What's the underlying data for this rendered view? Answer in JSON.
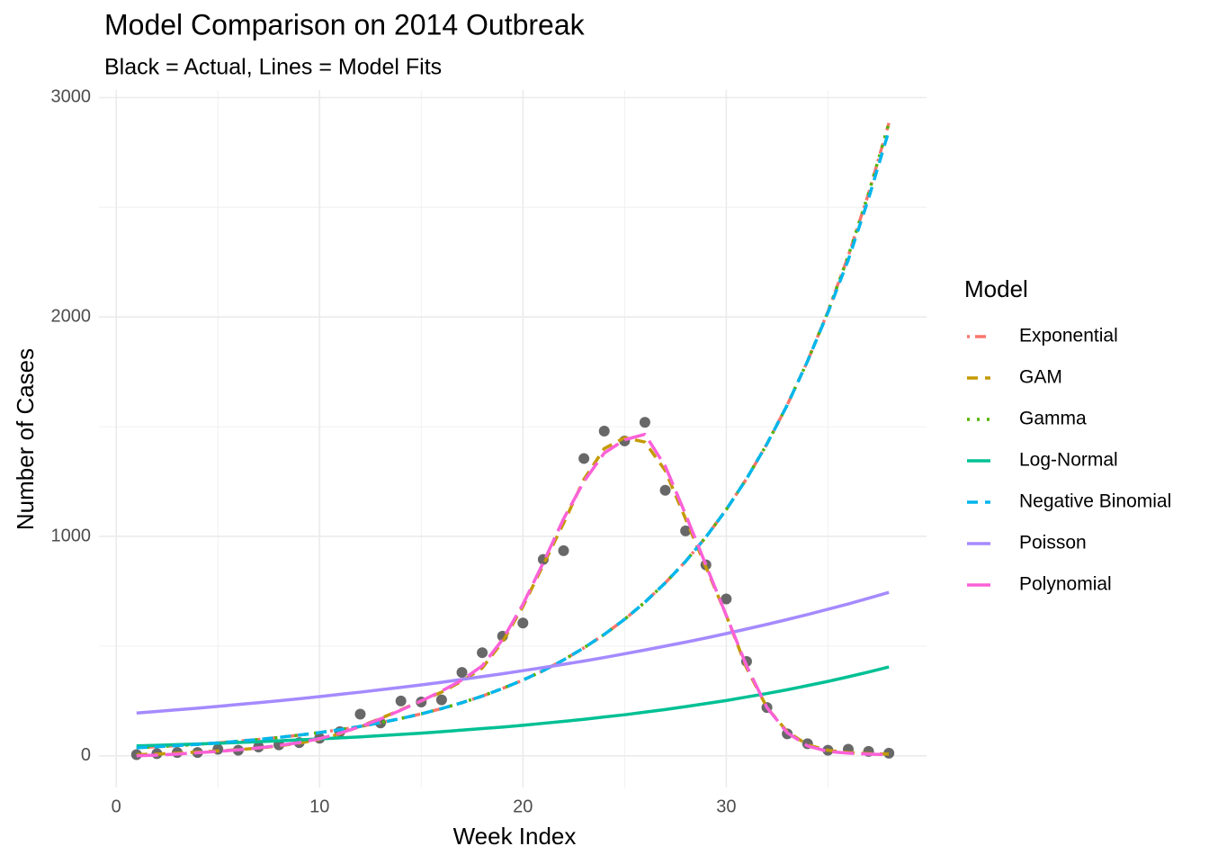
{
  "chart_data": {
    "type": "line",
    "title": "Model Comparison on 2014 Outbreak",
    "subtitle": "Black = Actual, Lines = Model Fits",
    "x_label": "Week Index",
    "y_label": "Number of Cases",
    "legend_title": "Model",
    "legend_position": "right",
    "grid": true,
    "xlim": [
      -0.85,
      39.85
    ],
    "ylim": [
      -144.5,
      3034.5
    ],
    "xticks": [
      0,
      10,
      20,
      30
    ],
    "yticks": [
      0,
      1000,
      2000,
      3000
    ],
    "x_minor_ticks": [
      5,
      15,
      25,
      35
    ],
    "y_minor_ticks": [
      500,
      1500,
      2500
    ],
    "x": [
      1,
      2,
      3,
      4,
      5,
      6,
      7,
      8,
      9,
      10,
      11,
      12,
      13,
      14,
      15,
      16,
      17,
      18,
      19,
      20,
      21,
      22,
      23,
      24,
      25,
      26,
      27,
      28,
      29,
      30,
      31,
      32,
      33,
      34,
      35,
      36,
      37,
      38
    ],
    "actual_color": "#4d4d4d",
    "actual_values": [
      5,
      10,
      15,
      15,
      30,
      25,
      40,
      50,
      60,
      80,
      110,
      190,
      150,
      250,
      245,
      255,
      380,
      470,
      545,
      605,
      895,
      935,
      1355,
      1480,
      1435,
      1520,
      1210,
      1025,
      870,
      715,
      430,
      220,
      100,
      55,
      25,
      30,
      20,
      12
    ],
    "series": [
      {
        "name": "Exponential",
        "color": "#F8766D",
        "linetype": "dotdash",
        "values": [
          36.7,
          41.3,
          46.4,
          52.3,
          58.8,
          66.2,
          74.4,
          83.8,
          94.3,
          106,
          119,
          134,
          151,
          170,
          191,
          215,
          242,
          272,
          307,
          345,
          388,
          437,
          492,
          553,
          622,
          700,
          788,
          886,
          997,
          1122,
          1263,
          1421,
          1599,
          1799,
          2024,
          2278,
          2563,
          2884
        ]
      },
      {
        "name": "GAM",
        "color": "#C49A00",
        "linetype": "dashed",
        "values": [
          5,
          8,
          12,
          17,
          22,
          28,
          35,
          45,
          58,
          75,
          100,
          135,
          170,
          210,
          250,
          290,
          340,
          400,
          520,
          680,
          870,
          1060,
          1260,
          1400,
          1450,
          1430,
          1300,
          1080,
          860,
          640,
          400,
          220,
          110,
          50,
          25,
          15,
          10,
          8
        ]
      },
      {
        "name": "Gamma",
        "color": "#53B400",
        "linetype": "dotted",
        "values": [
          36.7,
          41.3,
          46.4,
          52.3,
          58.8,
          66.2,
          74.4,
          83.8,
          94.3,
          106,
          119,
          134,
          151,
          170,
          191,
          215,
          242,
          272,
          307,
          345,
          388,
          437,
          492,
          553,
          622,
          700,
          788,
          886,
          997,
          1122,
          1263,
          1421,
          1599,
          1799,
          2024,
          2278,
          2563,
          2884
        ]
      },
      {
        "name": "Log-Normal",
        "color": "#00C094",
        "linetype": "solid",
        "values": [
          45,
          47.8,
          50.7,
          53.8,
          57.1,
          60.6,
          64.3,
          68.2,
          72.4,
          76.8,
          81.5,
          86.5,
          91.8,
          97.4,
          103,
          110,
          117,
          124,
          131,
          139,
          148,
          157,
          166,
          177,
          187,
          199,
          211,
          224,
          238,
          252,
          268,
          284,
          301,
          320,
          339,
          360,
          382,
          405
        ]
      },
      {
        "name": "Negative Binomial",
        "color": "#00B6EB",
        "linetype": "dashed",
        "values": [
          36.7,
          41.3,
          46.4,
          52.3,
          58.8,
          66.2,
          74.4,
          83.8,
          94.3,
          106,
          119,
          134,
          151,
          170,
          191,
          215,
          242,
          272,
          307,
          345,
          388,
          437,
          492,
          553,
          622,
          700,
          788,
          886,
          997,
          1122,
          1263,
          1421,
          1599,
          1799,
          2020,
          2260,
          2540,
          2850
        ]
      },
      {
        "name": "Poisson",
        "color": "#A58AFF",
        "linetype": "solid",
        "values": [
          195,
          202,
          210,
          217,
          225,
          234,
          242,
          251,
          260,
          270,
          280,
          290,
          301,
          312,
          323,
          335,
          348,
          361,
          374,
          388,
          402,
          417,
          432,
          448,
          465,
          482,
          500,
          518,
          537,
          557,
          578,
          599,
          621,
          644,
          668,
          692,
          718,
          745
        ]
      },
      {
        "name": "Polynomial",
        "color": "#FB61D7",
        "linetype": "longdash",
        "values": [
          0,
          3,
          8,
          14,
          20,
          27,
          36,
          47,
          60,
          78,
          103,
          133,
          168,
          208,
          250,
          295,
          345,
          410,
          530,
          690,
          880,
          1080,
          1250,
          1380,
          1440,
          1465,
          1320,
          1100,
          870,
          640,
          410,
          220,
          105,
          45,
          20,
          12,
          8,
          5
        ]
      }
    ]
  }
}
